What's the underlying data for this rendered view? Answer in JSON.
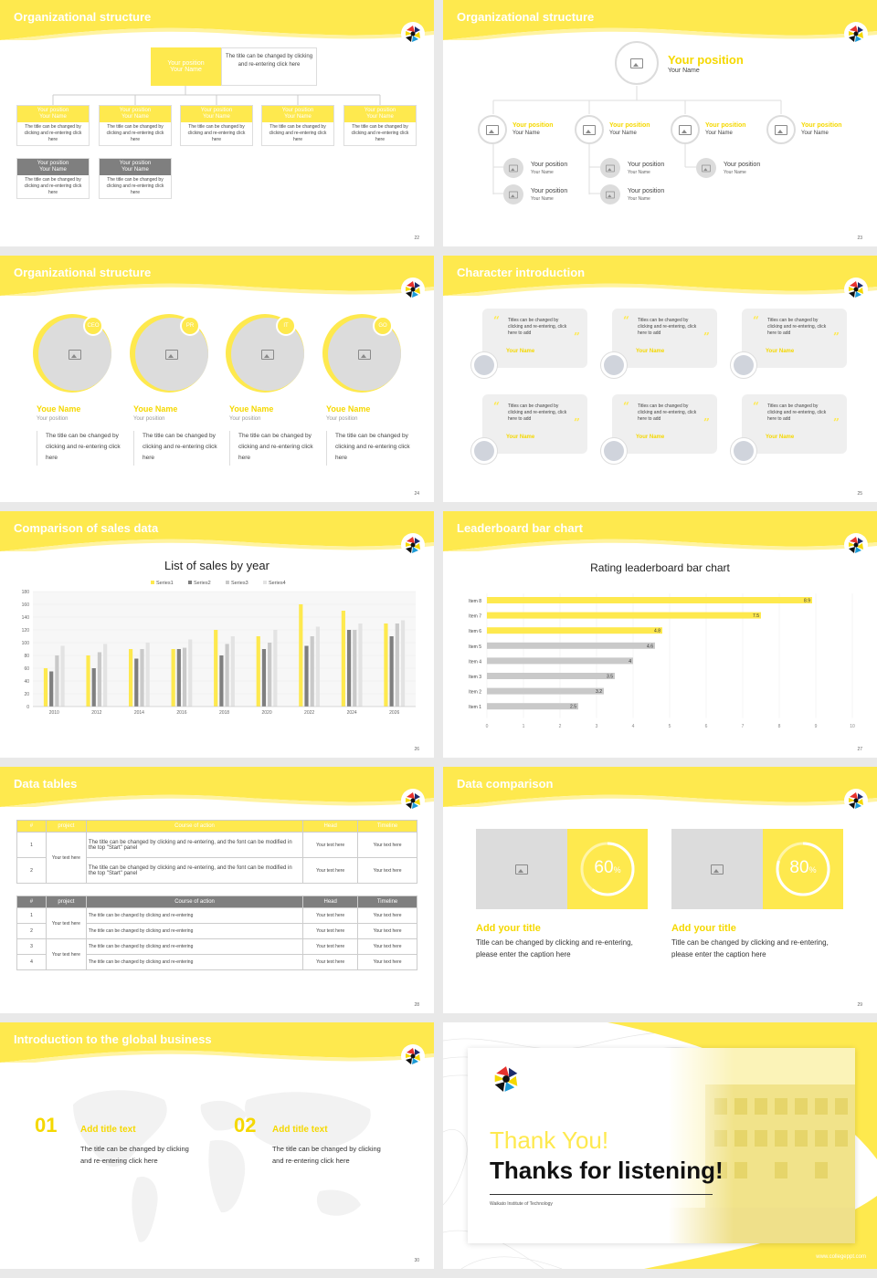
{
  "colors": {
    "accent": "#fee94e",
    "gray": "#7f7f7f",
    "light_gray": "#dcdcdc"
  },
  "placeholders": {
    "position": "Your position",
    "name": "Your Name",
    "name_alt": "Youe Name",
    "title_desc": "The title can be changed by clicking and re-entering click here",
    "title_desc_short": "The title can be changed by clicking and re-entering click here",
    "your_text": "Your text here"
  },
  "slide22": {
    "title": "Organizational structure",
    "page": "22",
    "top": {
      "position": "Your position",
      "name": "Your Name",
      "desc": "The title can be changed by clicking and re-entering click here"
    },
    "row1": [
      {
        "position": "Your position",
        "name": "Your Name",
        "desc": "The title can be changed by clicking and re-entering click here"
      },
      {
        "position": "Your position",
        "name": "Your Name",
        "desc": "The title can be changed by clicking and re-entering click here"
      },
      {
        "position": "Your position",
        "name": "Your Name",
        "desc": "The title can be changed by clicking and re-entering click here"
      },
      {
        "position": "Your position",
        "name": "Your Name",
        "desc": "The title can be changed by clicking and re-entering click here"
      },
      {
        "position": "Your position",
        "name": "Your Name",
        "desc": "The title can be changed by clicking and re-entering click here"
      }
    ],
    "row2": [
      {
        "position": "Your position",
        "name": "Your Name",
        "desc": "The title can be changed by clicking and re-entering click here"
      },
      {
        "position": "Your position",
        "name": "Your Name",
        "desc": "The title can be changed by clicking and re-entering click here"
      }
    ]
  },
  "slide23": {
    "title": "Organizational structure",
    "page": "23",
    "top": {
      "position": "Your position",
      "name": "Your Name"
    },
    "row1": [
      {
        "position": "Your position",
        "name": "Your Name"
      },
      {
        "position": "Your position",
        "name": "Your Name"
      },
      {
        "position": "Your position",
        "name": "Your Name"
      },
      {
        "position": "Your position",
        "name": "Your Name"
      }
    ],
    "row2": [
      {
        "position": "Your position",
        "name": "Your Name"
      },
      {
        "position": "Your position",
        "name": "Your Name"
      },
      {
        "position": "Your position",
        "name": "Your Name"
      },
      {
        "position": "Your position",
        "name": "Your Name"
      },
      {
        "position": "Your position",
        "name": "Your Name"
      }
    ]
  },
  "slide24": {
    "title": "Organizational structure",
    "page": "24",
    "people": [
      {
        "badge": "CEO",
        "name": "Youe Name",
        "position": "Your position",
        "desc": "The title can be changed by clicking and re-entering click here"
      },
      {
        "badge": "PR",
        "name": "Youe Name",
        "position": "Your position",
        "desc": "The title can be changed by clicking and re-entering click here"
      },
      {
        "badge": "IT",
        "name": "Youe Name",
        "position": "Your position",
        "desc": "The title can be changed by clicking and re-entering click here"
      },
      {
        "badge": "GO",
        "name": "Youe Name",
        "position": "Your position",
        "desc": "The title can be changed by clicking and re-entering click here"
      }
    ]
  },
  "slide25": {
    "title": "Character introduction",
    "page": "25",
    "cards": [
      {
        "text": "Titles can be changed by clicking and re-entering, click here to add",
        "name": "Your Name"
      },
      {
        "text": "Titles can be changed by clicking and re-entering, click here to add",
        "name": "Your Name"
      },
      {
        "text": "Titles can be changed by clicking and re-entering, click here to add",
        "name": "Your Name"
      },
      {
        "text": "Titles can be changed by clicking and re-entering, click here to add",
        "name": "Your Name"
      },
      {
        "text": "Titles can be changed by clicking and re-entering, click here to add",
        "name": "Your Name"
      },
      {
        "text": "Titles can be changed by clicking and re-entering, click here to add",
        "name": "Your Name"
      }
    ]
  },
  "slide26": {
    "title": "Comparison of sales data",
    "page": "26",
    "chart_data": {
      "type": "bar",
      "title": "List of sales by year",
      "categories": [
        "2010",
        "2012",
        "2014",
        "2016",
        "2018",
        "2020",
        "2022",
        "2024",
        "2026"
      ],
      "series": [
        {
          "name": "Series1",
          "color": "#fee94e",
          "values": [
            60,
            80,
            90,
            90,
            120,
            110,
            160,
            150,
            130
          ]
        },
        {
          "name": "Series2",
          "color": "#7f7f7f",
          "values": [
            55,
            60,
            75,
            90,
            80,
            90,
            95,
            120,
            110
          ]
        },
        {
          "name": "Series3",
          "color": "#c9c9c9",
          "values": [
            80,
            85,
            90,
            92,
            98,
            100,
            110,
            120,
            130
          ]
        },
        {
          "name": "Series4",
          "color": "#e3e3e3",
          "values": [
            95,
            98,
            100,
            105,
            110,
            120,
            125,
            130,
            135
          ]
        }
      ],
      "ylim": [
        0,
        180
      ],
      "yticks": [
        "0",
        "20",
        "40",
        "60",
        "80",
        "100",
        "120",
        "140",
        "160",
        "180"
      ],
      "legend": "top"
    }
  },
  "slide27": {
    "title": "Leaderboard bar chart",
    "page": "27",
    "chart_data": {
      "type": "bar",
      "orientation": "horizontal",
      "title": "Rating leaderboard bar chart",
      "categories": [
        "Item 8",
        "Item 7",
        "Item 6",
        "Item 5",
        "Item 4",
        "Item 3",
        "Item 2",
        "Item 1"
      ],
      "values": [
        8.9,
        7.5,
        4.8,
        4.6,
        4,
        3.5,
        3.2,
        2.5
      ],
      "value_labels": [
        "8.9",
        "7.5",
        "4.8",
        "4.6",
        "4",
        "3.5",
        "3.2",
        "2.5"
      ],
      "colors": [
        "#fee94e",
        "#fee94e",
        "#fee94e",
        "#c9c9c9",
        "#c9c9c9",
        "#c9c9c9",
        "#c9c9c9",
        "#c9c9c9"
      ],
      "xlim": [
        0,
        10
      ],
      "xticks": [
        "0",
        "1",
        "2",
        "3",
        "4",
        "5",
        "6",
        "7",
        "8",
        "9",
        "10"
      ]
    }
  },
  "slide28": {
    "title": "Data tables",
    "page": "28",
    "table1": {
      "headers": [
        "#",
        "project",
        "Course of action",
        "Head",
        "Timeline"
      ],
      "group": "Your text here",
      "rows": [
        {
          "num": "1",
          "action": "The title can be changed by clicking and re-entering, and the font can be modified in the top \"Start\" panel",
          "head": "Your text here",
          "time": "Your text here"
        },
        {
          "num": "2",
          "action": "The title can be changed by clicking and re-entering, and the font can be modified in the top \"Start\" panel",
          "head": "Your text here",
          "time": "Your text here"
        }
      ]
    },
    "table2": {
      "headers": [
        "#",
        "project",
        "Course of action",
        "Head",
        "Timeline"
      ],
      "groups": [
        "Your text here",
        "Your text here"
      ],
      "rows": [
        {
          "num": "1",
          "action": "The title can be changed by clicking and re-entering",
          "head": "Your text here",
          "time": "Your text here"
        },
        {
          "num": "2",
          "action": "The title can be changed by clicking and re-entering",
          "head": "Your text here",
          "time": "Your text here"
        },
        {
          "num": "3",
          "action": "The title can be changed by clicking and re-entering",
          "head": "Your text here",
          "time": "Your text here"
        },
        {
          "num": "4",
          "action": "The title can be changed by clicking and re-entering",
          "head": "Your text here",
          "time": "Your text here"
        }
      ]
    }
  },
  "slide29": {
    "title": "Data comparison",
    "page": "29",
    "items": [
      {
        "percent": "60",
        "percent_value": 60,
        "unit": "%",
        "heading": "Add your title",
        "desc": "Title can be changed by clicking and re-entering, please enter the caption here"
      },
      {
        "percent": "80",
        "percent_value": 80,
        "unit": "%",
        "heading": "Add your title",
        "desc": "Title can be changed by clicking and re-entering, please enter the caption here"
      }
    ]
  },
  "slide30": {
    "title": "Introduction to the global business",
    "page": "30",
    "items": [
      {
        "num": "01",
        "heading": "Add title text",
        "desc": "The title can be changed by clicking and re-entering click here"
      },
      {
        "num": "02",
        "heading": "Add title text",
        "desc": "The title can be changed by clicking and re-entering click here"
      }
    ]
  },
  "slide31": {
    "thank": "Thank You!",
    "thanks": "Thanks for listening!",
    "institution": "Waikato Institute of Technology",
    "url": "www.collegeppt.com"
  }
}
